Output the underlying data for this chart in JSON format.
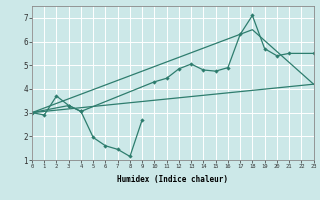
{
  "background_color": "#cce8e8",
  "grid_color": "#ffffff",
  "line_color": "#2e7d6e",
  "xlabel": "Humidex (Indice chaleur)",
  "xlim": [
    0,
    23
  ],
  "ylim": [
    1,
    7.5
  ],
  "yticks": [
    1,
    2,
    3,
    4,
    5,
    6,
    7
  ],
  "line1_x": [
    0,
    1,
    2,
    3,
    4,
    5,
    6,
    7,
    8,
    9
  ],
  "line1_y": [
    3.0,
    2.9,
    3.7,
    3.3,
    3.05,
    1.95,
    1.6,
    1.45,
    1.15,
    2.7
  ],
  "line2_x": [
    0,
    3,
    4,
    10,
    11,
    12,
    13,
    14,
    15,
    16,
    17,
    18,
    19,
    20,
    21,
    23
  ],
  "line2_y": [
    3.0,
    3.3,
    3.05,
    4.3,
    4.45,
    4.85,
    5.05,
    4.8,
    4.75,
    4.9,
    6.3,
    7.1,
    5.7,
    5.4,
    5.5,
    5.5
  ],
  "line3_x": [
    0,
    23
  ],
  "line3_y": [
    3.0,
    4.2
  ],
  "line4_x": [
    0,
    18,
    23
  ],
  "line4_y": [
    3.0,
    6.5,
    4.2
  ]
}
